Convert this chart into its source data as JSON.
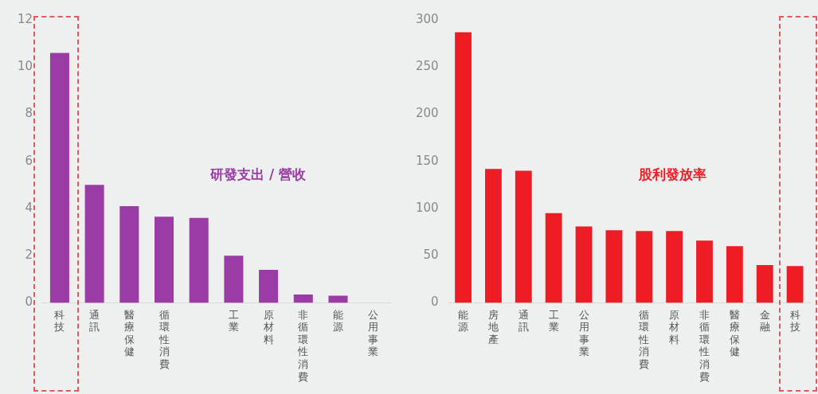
{
  "chart_data": [
    {
      "type": "bar",
      "title": "研發支出 / 營收",
      "categories": [
        "科技",
        "通訊",
        "醫療保健",
        "循環性消費",
        null,
        "工業",
        "原材料",
        "非循環性消費",
        "能源",
        "公用事業"
      ],
      "values": [
        10.6,
        5.0,
        4.1,
        3.65,
        3.6,
        2.0,
        1.4,
        0.35,
        0.3,
        0
      ],
      "color": "#9b3ba6",
      "ylim": [
        0,
        12
      ],
      "yticks": [
        0,
        2,
        4,
        6,
        8,
        10,
        12
      ],
      "grid": false
    },
    {
      "type": "bar",
      "title": "股利發放率",
      "categories": [
        "能源",
        "房地產",
        "通訊",
        "工業",
        "公用事業",
        null,
        "循環性消費",
        "原材料",
        "非循環性消費",
        "醫療保健",
        "金融",
        "科技"
      ],
      "values": [
        287,
        142,
        140,
        95,
        81,
        77,
        76,
        76,
        66,
        60,
        40,
        39
      ],
      "color": "#ee1c25",
      "ylim": [
        0,
        300
      ],
      "yticks": [
        0,
        50,
        100,
        150,
        200,
        250,
        300
      ],
      "grid": false
    }
  ]
}
